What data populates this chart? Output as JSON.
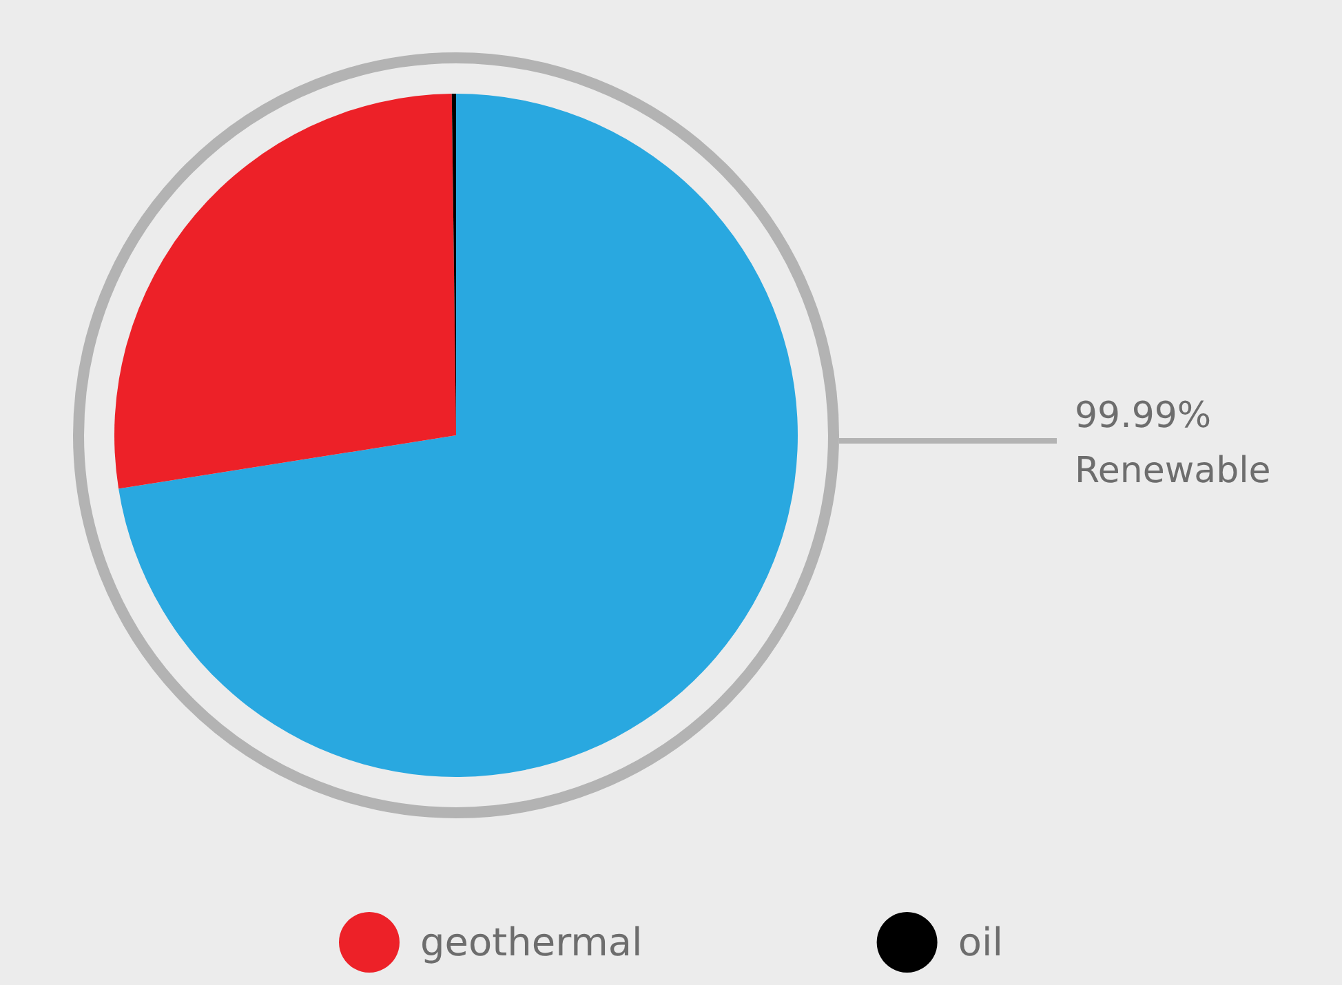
{
  "chart_data": {
    "type": "pie",
    "categories": [
      null,
      "geothermal",
      "oil"
    ],
    "values": [
      72.5,
      27.3,
      0.2
    ],
    "colors": [
      "#29a8e0",
      "#ed2128",
      "#000000"
    ],
    "annotations": [
      "99.99%\nRenewable"
    ],
    "legend": "bottom"
  }
}
